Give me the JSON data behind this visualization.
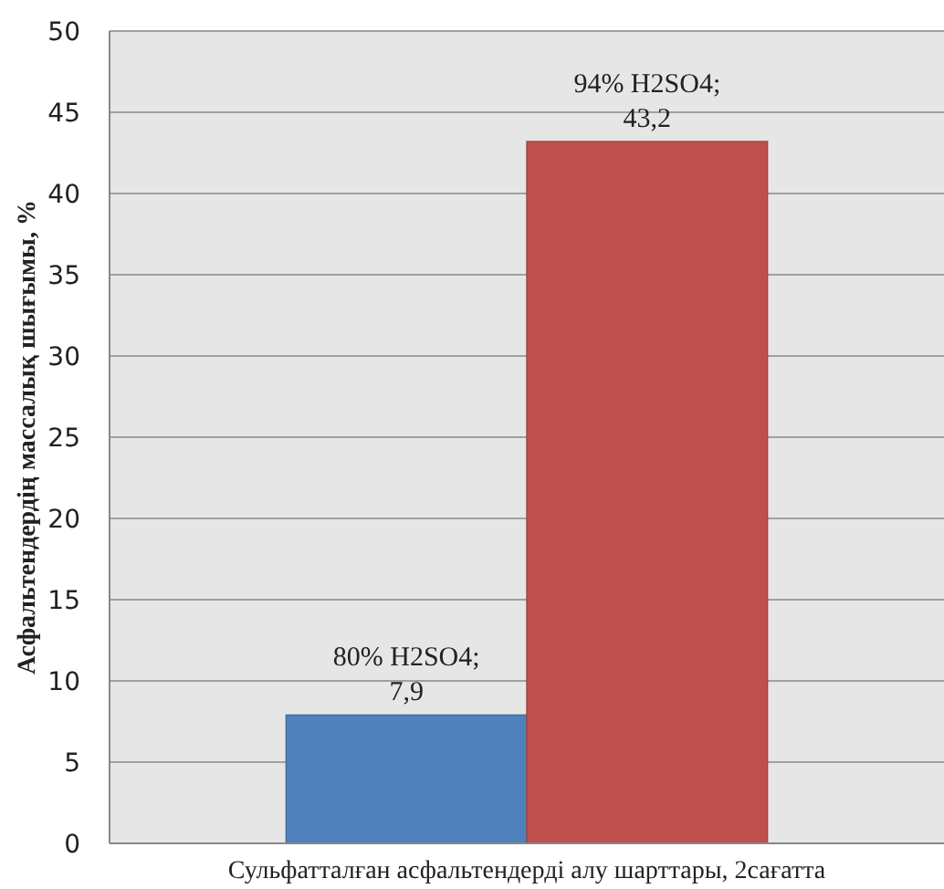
{
  "chart_data": {
    "type": "bar",
    "xlabel": "Сульфатталған асфальтендерді алу шарттары, 2сағатта",
    "ylabel": "Асфальтендердің массалық шығымы, %",
    "categories": [
      null
    ],
    "series": [
      {
        "color": "#4f81bd",
        "values": [
          7.9
        ],
        "value_labels": [
          "80% H2SO4;\n7,9"
        ]
      },
      {
        "color": "#c0504d",
        "values": [
          43.2
        ],
        "value_labels": [
          "94% H2SO4;\n43,2"
        ]
      }
    ],
    "ylim": [
      0,
      50
    ],
    "yticks": [
      0,
      5,
      10,
      15,
      20,
      25,
      30,
      35,
      40,
      45,
      50
    ],
    "grid": "y"
  }
}
